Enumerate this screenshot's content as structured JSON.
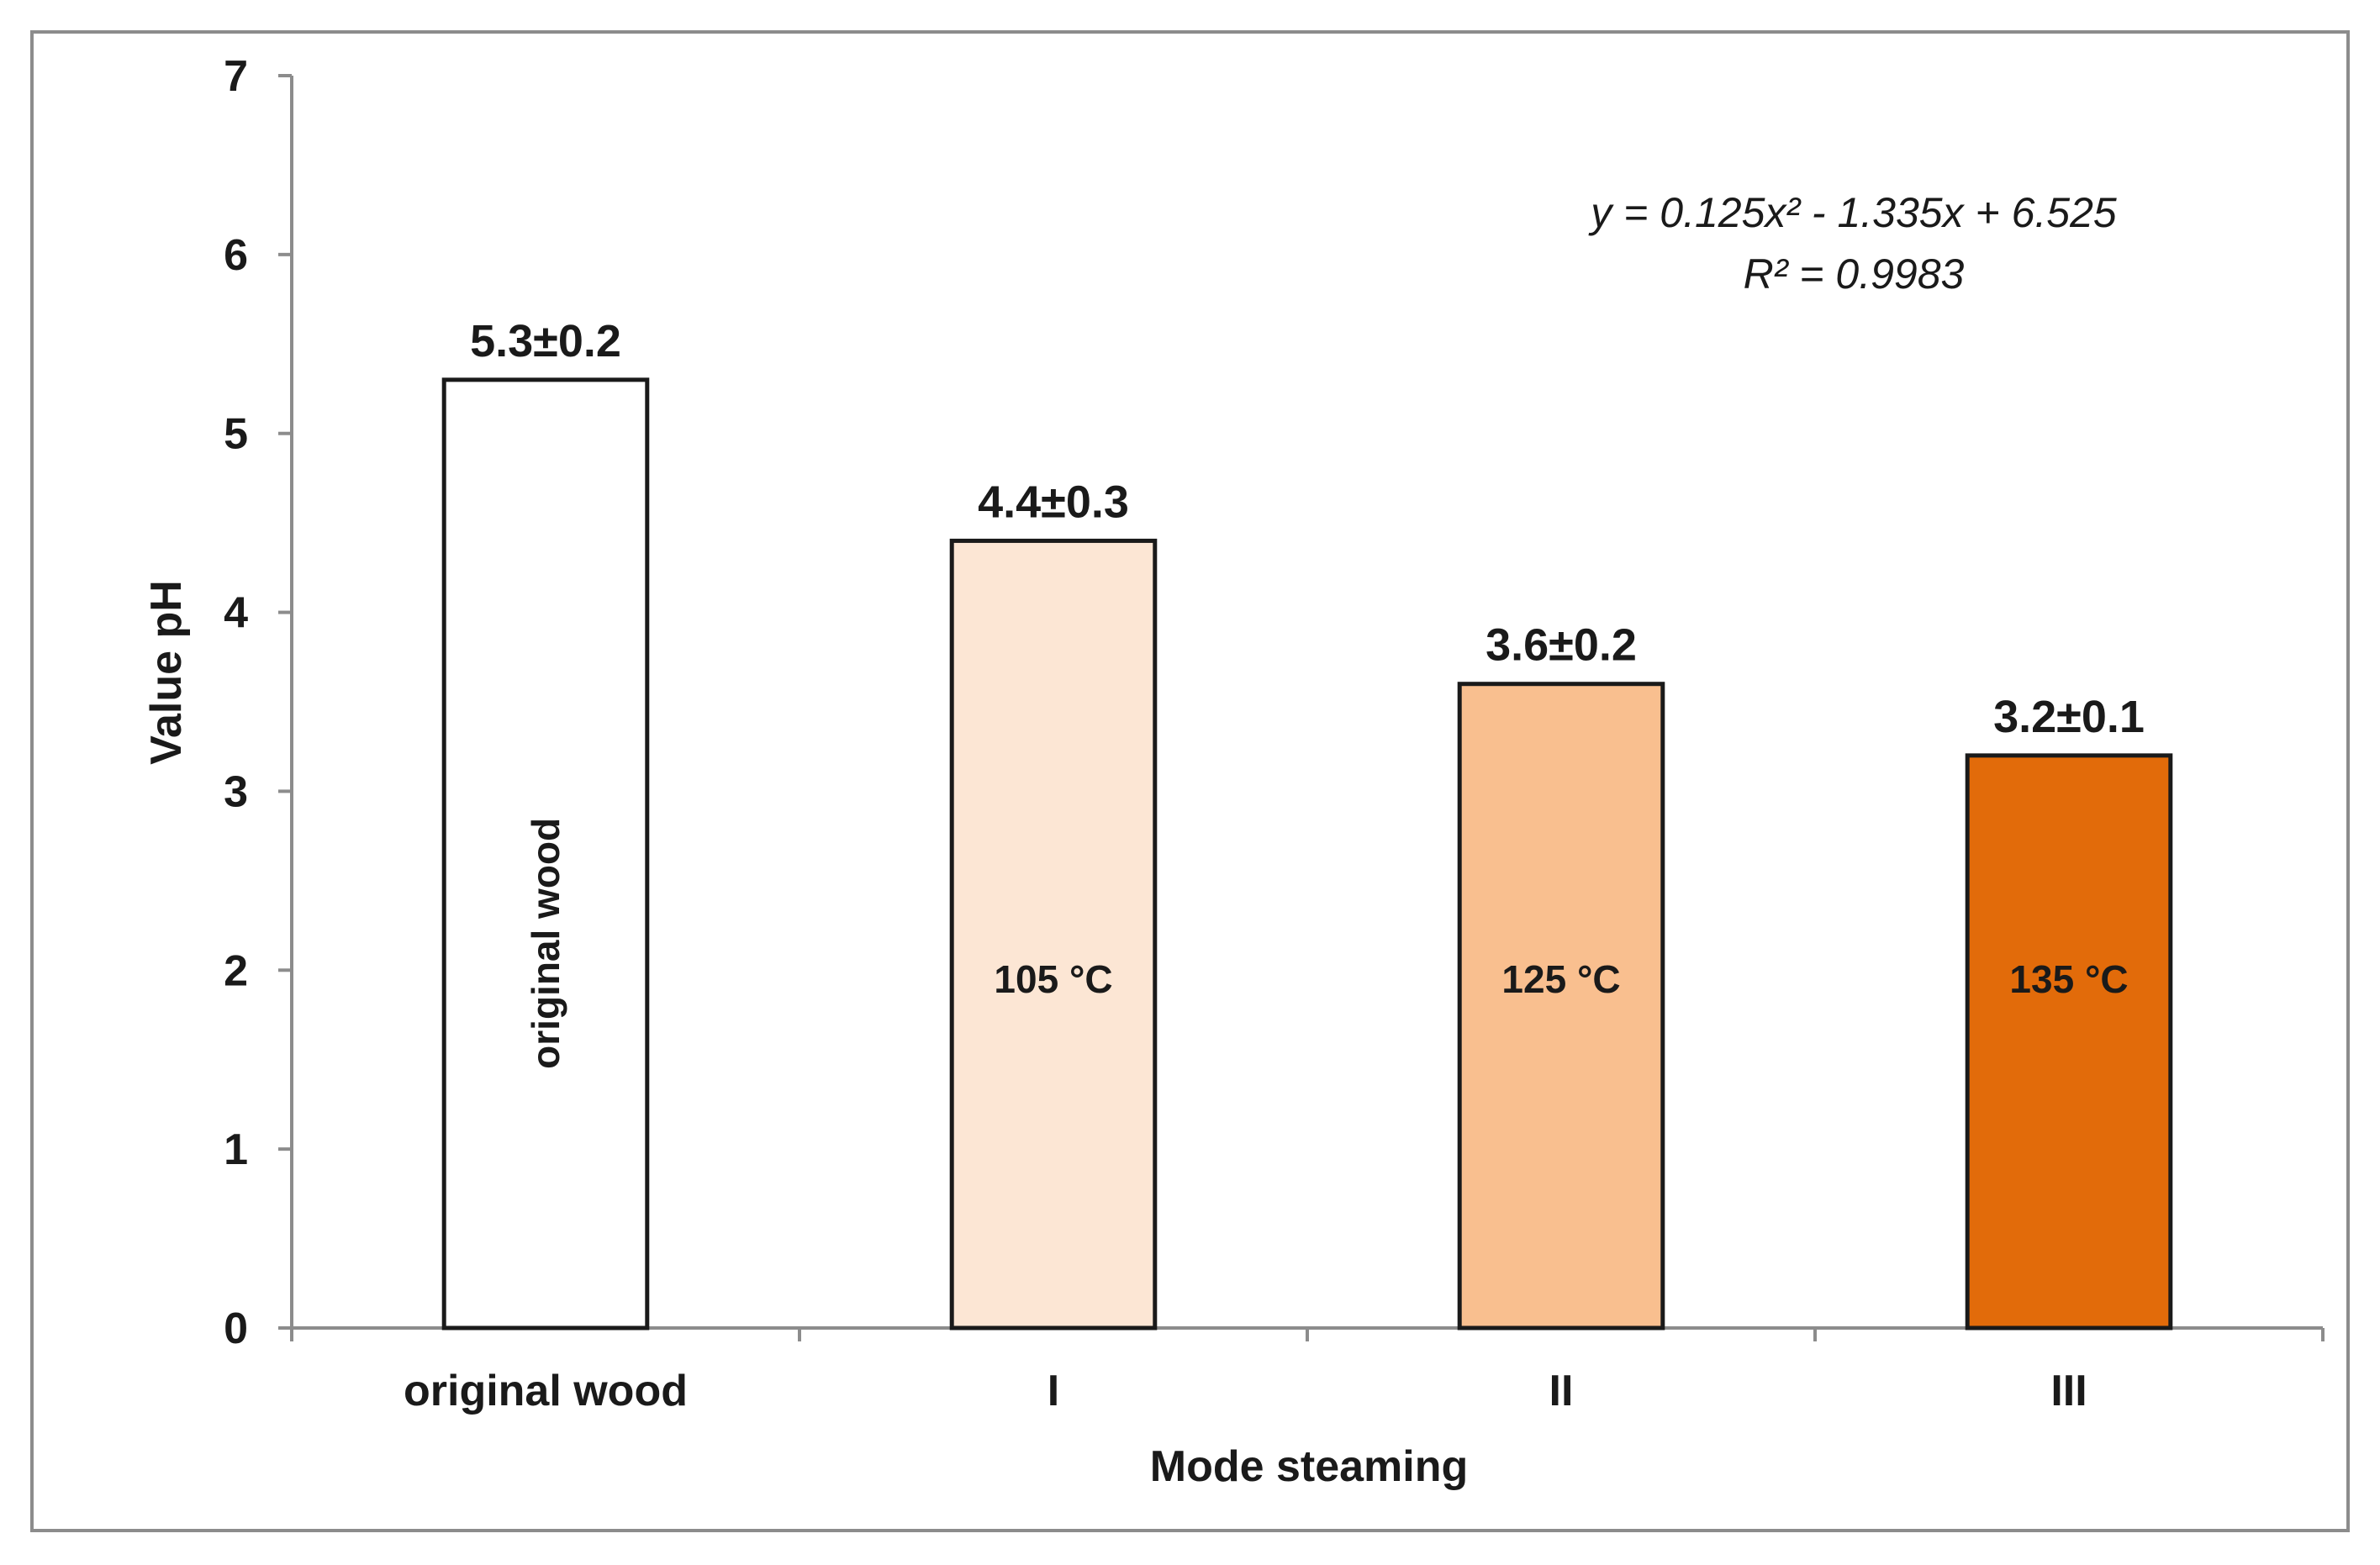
{
  "chart_data": {
    "type": "bar",
    "title": "",
    "xlabel": "Mode steaming",
    "ylabel": "Value pH",
    "ylim": [
      0,
      7
    ],
    "yticks": [
      0,
      1,
      2,
      3,
      4,
      5,
      6,
      7
    ],
    "grid": false,
    "categories": [
      "original wood",
      "I",
      "II",
      "III"
    ],
    "values": [
      5.3,
      4.4,
      3.6,
      3.2
    ],
    "data_labels": [
      "5.3±0.2",
      "4.4±0.3",
      "3.6±0.2",
      "3.2±0.1"
    ],
    "inner_labels": [
      "original wood",
      "105 °C",
      "125 °C",
      "135 °C"
    ],
    "colors": [
      "#ffffff",
      "#fce6d4",
      "#f9bf8f",
      "#e26b0a"
    ],
    "trendline": {
      "equation": "y = 0.125x² - 1.335x + 6.525",
      "r_squared": "R² = 0.9983"
    }
  }
}
